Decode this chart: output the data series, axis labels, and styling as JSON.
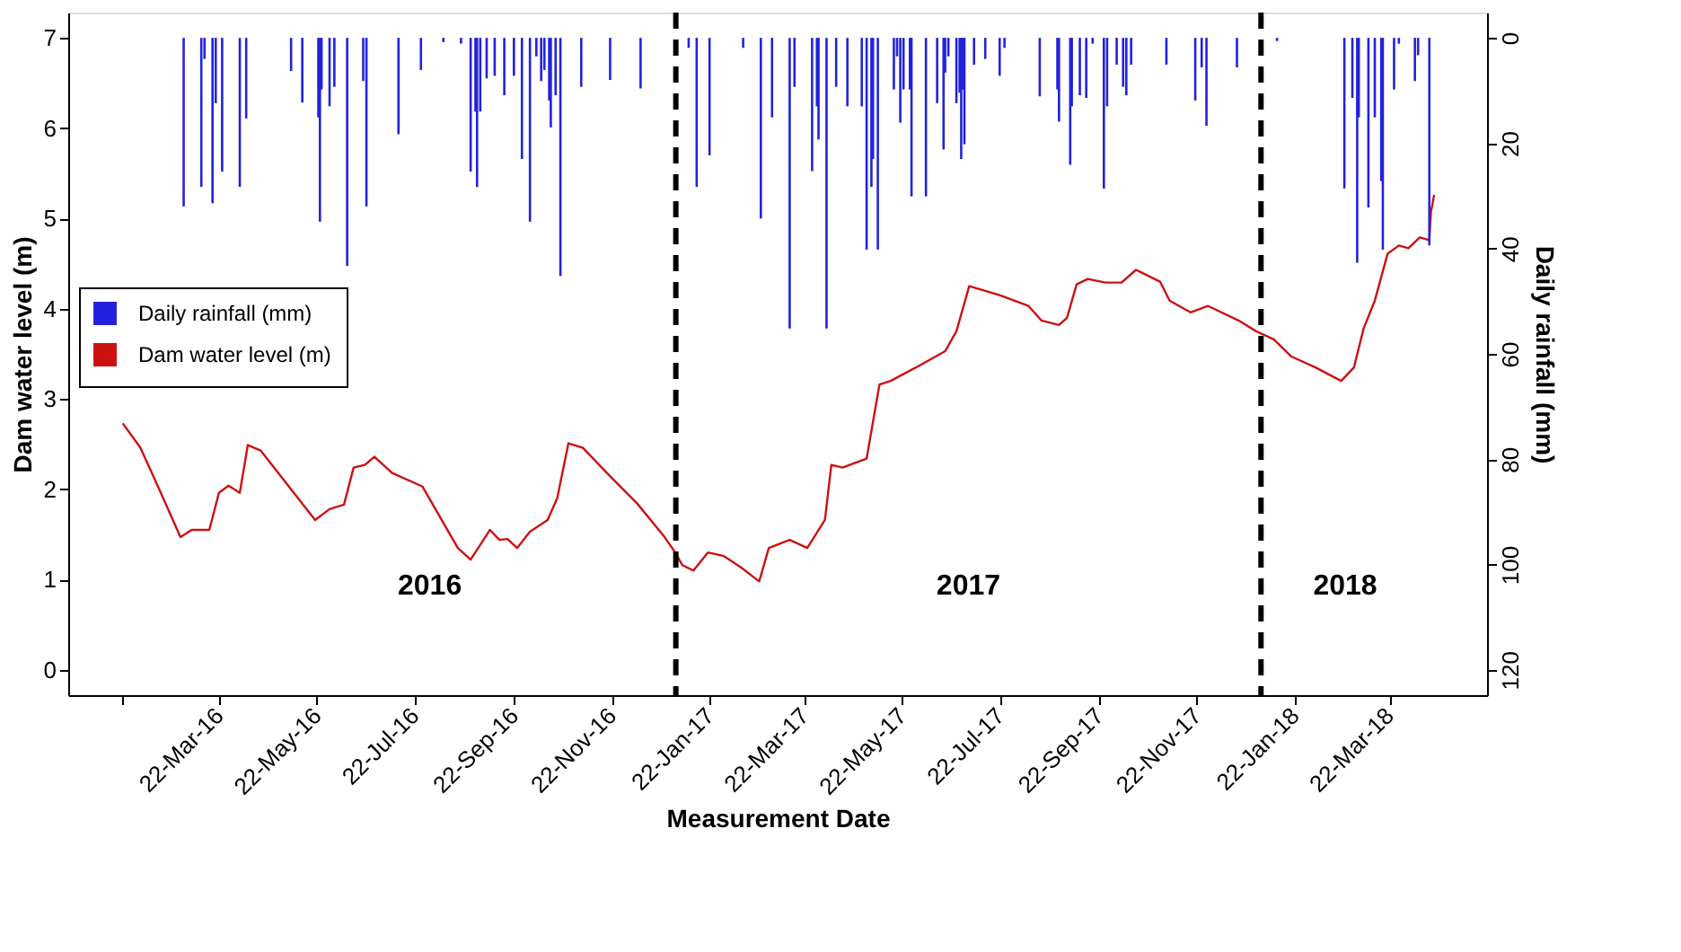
{
  "chart_data": {
    "type": "line",
    "xlabel": "Measurement Date",
    "ylabel": "Dam water level (m)",
    "y2label": "Daily rainfall (mm)",
    "xlim": [
      "2015-12-19",
      "2018-05-22"
    ],
    "ylim": [
      -0.28,
      7.28
    ],
    "yticks": [
      0,
      1,
      2,
      3,
      4,
      5,
      6,
      7
    ],
    "y2lim": [
      124.8,
      -4.8
    ],
    "y2ticks": [
      0,
      20,
      40,
      60,
      80,
      100,
      120
    ],
    "xticks": [
      {
        "value": "2016-01-22",
        "label": null
      },
      {
        "value": "2016-03-22",
        "label": "22-Mar-16"
      },
      {
        "value": "2016-05-22",
        "label": "22-May-16"
      },
      {
        "value": "2016-07-22",
        "label": "22-Jul-16"
      },
      {
        "value": "2016-09-22",
        "label": "22-Sep-16"
      },
      {
        "value": "2016-11-22",
        "label": "22-Nov-16"
      },
      {
        "value": "2017-01-22",
        "label": "22-Jan-17"
      },
      {
        "value": "2017-03-22",
        "label": "22-Mar-17"
      },
      {
        "value": "2017-05-22",
        "label": "22-May-17"
      },
      {
        "value": "2017-07-22",
        "label": "22-Jul-17"
      },
      {
        "value": "2017-09-22",
        "label": "22-Sep-17"
      },
      {
        "value": "2017-11-22",
        "label": "22-Nov-17"
      },
      {
        "value": "2018-01-22",
        "label": "22-Jan-18"
      },
      {
        "value": "2018-03-22",
        "label": "22-Mar-18"
      }
    ],
    "grid": false,
    "legend": "left",
    "ref_lines": [
      {
        "axis": "x",
        "value": "2017-01-01",
        "color": "#000000",
        "line_style": "dashed"
      },
      {
        "axis": "x",
        "value": "2018-01-01",
        "color": "#000000",
        "line_style": "dashed"
      }
    ],
    "annotations": [
      "2016",
      "2017",
      "2018"
    ],
    "series": [
      {
        "name": "Daily rainfall (mm)",
        "type": "bar",
        "axis": "y2",
        "color": "#2222dd",
        "x": [
          "2016-02-29",
          "2016-03-11",
          "2016-03-13",
          "2016-03-18",
          "2016-03-20",
          "2016-03-24",
          "2016-04-04",
          "2016-04-08",
          "2016-05-06",
          "2016-05-13",
          "2016-05-23",
          "2016-05-24",
          "2016-05-25",
          "2016-05-30",
          "2016-06-02",
          "2016-06-10",
          "2016-06-20",
          "2016-06-22",
          "2016-07-12",
          "2016-07-26",
          "2016-08-09",
          "2016-08-20",
          "2016-08-26",
          "2016-08-29",
          "2016-08-30",
          "2016-09-01",
          "2016-09-05",
          "2016-09-10",
          "2016-09-16",
          "2016-09-22",
          "2016-09-27",
          "2016-10-02",
          "2016-10-06",
          "2016-10-09",
          "2016-10-11",
          "2016-10-14",
          "2016-10-15",
          "2016-10-18",
          "2016-10-21",
          "2016-11-03",
          "2016-11-21",
          "2016-12-10",
          "2017-01-09",
          "2017-01-14",
          "2017-01-22",
          "2017-02-12",
          "2017-02-23",
          "2017-03-02",
          "2017-03-13",
          "2017-03-16",
          "2017-03-27",
          "2017-03-30",
          "2017-03-31",
          "2017-04-05",
          "2017-04-11",
          "2017-04-18",
          "2017-04-27",
          "2017-04-30",
          "2017-05-03",
          "2017-05-04",
          "2017-05-07",
          "2017-05-17",
          "2017-05-19",
          "2017-05-21",
          "2017-05-23",
          "2017-05-27",
          "2017-05-28",
          "2017-06-06",
          "2017-06-13",
          "2017-06-17",
          "2017-06-18",
          "2017-06-20",
          "2017-06-25",
          "2017-06-27",
          "2017-06-28",
          "2017-06-29",
          "2017-06-30",
          "2017-07-06",
          "2017-07-13",
          "2017-07-22",
          "2017-07-25",
          "2017-08-16",
          "2017-08-27",
          "2017-08-28",
          "2017-09-04",
          "2017-09-05",
          "2017-09-10",
          "2017-09-14",
          "2017-09-18",
          "2017-09-25",
          "2017-09-27",
          "2017-10-03",
          "2017-10-07",
          "2017-10-09",
          "2017-10-12",
          "2017-11-03",
          "2017-11-21",
          "2017-11-25",
          "2017-11-28",
          "2017-12-17",
          "2018-01-11",
          "2018-02-22",
          "2018-02-27",
          "2018-03-02",
          "2018-03-03",
          "2018-03-09",
          "2018-03-13",
          "2018-03-17",
          "2018-03-18",
          "2018-03-25",
          "2018-03-28",
          "2018-04-07",
          "2018-04-09",
          "2018-04-16"
        ],
        "values": [
          32.0,
          28.3,
          4.0,
          31.4,
          12.4,
          25.4,
          28.3,
          15.3,
          6.3,
          12.3,
          15.1,
          34.9,
          9.8,
          13.0,
          9.3,
          43.3,
          8.2,
          32.0,
          18.3,
          6.1,
          0.8,
          1.1,
          25.4,
          14.0,
          28.3,
          14.0,
          7.7,
          7.2,
          10.9,
          7.2,
          23.0,
          34.9,
          3.5,
          8.2,
          6.1,
          11.9,
          17.0,
          10.9,
          45.2,
          9.3,
          8.0,
          9.6,
          1.9,
          28.3,
          22.3,
          1.9,
          34.3,
          15.1,
          55.2,
          9.3,
          25.3,
          13.0,
          19.3,
          55.2,
          9.3,
          13.0,
          13.0,
          40.2,
          28.3,
          23.0,
          40.2,
          9.8,
          3.5,
          16.1,
          9.8,
          9.8,
          30.1,
          30.1,
          12.4,
          21.2,
          6.6,
          3.5,
          12.4,
          10.4,
          23.0,
          9.8,
          20.2,
          5.1,
          4.0,
          7.2,
          1.9,
          11.1,
          9.8,
          15.9,
          24.1,
          13.0,
          10.9,
          11.4,
          1.1,
          28.6,
          13.0,
          5.1,
          9.3,
          10.9,
          5.1,
          5.1,
          11.9,
          5.6,
          16.7,
          5.6,
          0.6,
          28.6,
          11.4,
          42.7,
          15.1,
          32.2,
          15.1,
          27.2,
          40.2,
          9.8,
          1.1,
          8.2,
          3.3,
          39.4
        ]
      },
      {
        "name": "Dam water level (m)",
        "color": "#cc1111",
        "x": [
          "2016-01-22",
          "2016-02-02",
          "2016-02-13",
          "2016-02-27",
          "2016-03-05",
          "2016-03-16",
          "2016-03-22",
          "2016-03-28",
          "2016-04-04",
          "2016-04-09",
          "2016-04-17",
          "2016-05-21",
          "2016-05-30",
          "2016-06-08",
          "2016-06-14",
          "2016-06-21",
          "2016-06-27",
          "2016-07-08",
          "2016-07-27",
          "2016-08-18",
          "2016-08-26",
          "2016-09-07",
          "2016-09-13",
          "2016-09-18",
          "2016-09-24",
          "2016-10-02",
          "2016-10-13",
          "2016-10-19",
          "2016-10-26",
          "2016-11-04",
          "2016-11-19",
          "2016-12-08",
          "2016-12-25",
          "2017-01-01",
          "2017-01-05",
          "2017-01-12",
          "2017-01-21",
          "2017-01-31",
          "2017-02-11",
          "2017-02-22",
          "2017-02-28",
          "2017-03-13",
          "2017-03-24",
          "2017-04-04",
          "2017-04-08",
          "2017-04-15",
          "2017-04-30",
          "2017-05-08",
          "2017-05-15",
          "2017-06-03",
          "2017-06-18",
          "2017-06-25",
          "2017-07-03",
          "2017-07-22",
          "2017-08-09",
          "2017-08-17",
          "2017-08-28",
          "2017-09-02",
          "2017-09-08",
          "2017-09-15",
          "2017-09-26",
          "2017-10-06",
          "2017-10-15",
          "2017-10-30",
          "2017-11-05",
          "2017-11-18",
          "2017-11-29",
          "2017-12-18",
          "2017-12-29",
          "2018-01-09",
          "2018-01-20",
          "2018-02-04",
          "2018-02-20",
          "2018-02-28",
          "2018-03-06",
          "2018-03-13",
          "2018-03-21",
          "2018-03-28",
          "2018-04-03",
          "2018-04-10",
          "2018-04-16",
          "2018-04-17",
          "2018-04-19"
        ],
        "values": [
          2.73,
          2.46,
          2.03,
          1.47,
          1.55,
          1.55,
          1.96,
          2.04,
          1.96,
          2.49,
          2.43,
          1.66,
          1.78,
          1.83,
          2.24,
          2.27,
          2.36,
          2.18,
          2.03,
          1.35,
          1.22,
          1.55,
          1.44,
          1.45,
          1.35,
          1.53,
          1.66,
          1.9,
          2.51,
          2.46,
          2.18,
          1.84,
          1.47,
          1.29,
          1.16,
          1.1,
          1.3,
          1.26,
          1.13,
          0.98,
          1.35,
          1.44,
          1.35,
          1.66,
          2.27,
          2.24,
          2.34,
          3.16,
          3.2,
          3.38,
          3.53,
          3.75,
          4.25,
          4.15,
          4.03,
          3.87,
          3.82,
          3.9,
          4.27,
          4.33,
          4.29,
          4.29,
          4.43,
          4.3,
          4.09,
          3.96,
          4.03,
          3.87,
          3.75,
          3.66,
          3.47,
          3.35,
          3.2,
          3.35,
          3.78,
          4.09,
          4.61,
          4.7,
          4.67,
          4.79,
          4.76,
          5.07,
          5.26
        ]
      }
    ]
  }
}
